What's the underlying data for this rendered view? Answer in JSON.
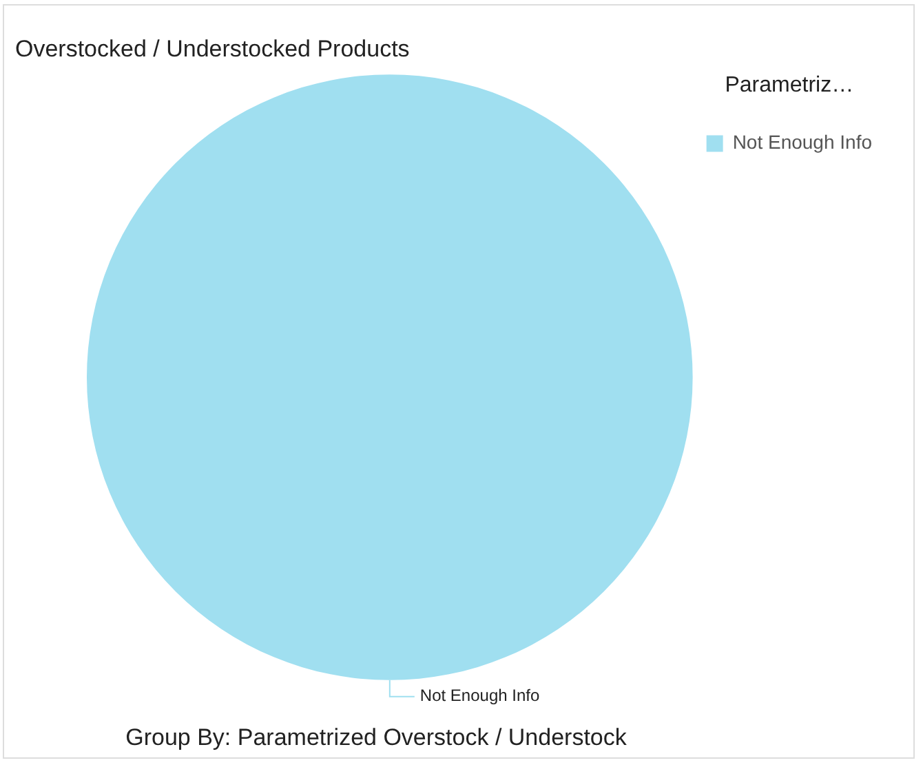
{
  "chart_data": {
    "type": "pie",
    "title": "Overstocked / Understocked Products",
    "legend_title": "Parametriz…",
    "categories": [
      "Not Enough Info"
    ],
    "values": [
      100
    ],
    "colors": [
      "#a0dff0"
    ],
    "legend": "top right",
    "annotations": [
      "Group By: Parametrized Overstock / Understock"
    ]
  }
}
